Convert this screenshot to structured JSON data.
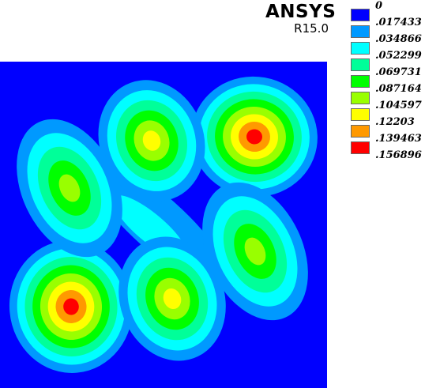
{
  "header": {
    "product": "ANSYS",
    "release": "R15.0"
  },
  "legend": {
    "entries": [
      {
        "label": "0",
        "color": "#0000ff"
      },
      {
        "label": ".017433",
        "color": "#0099ff"
      },
      {
        "label": ".034866",
        "color": "#00ffff"
      },
      {
        "label": ".052299",
        "color": "#00ff99"
      },
      {
        "label": ".069731",
        "color": "#00ff00"
      },
      {
        "label": ".087164",
        "color": "#99ff00"
      },
      {
        "label": ".104597",
        "color": "#ffff00"
      },
      {
        "label": ".12203",
        "color": "#ff9900"
      },
      {
        "label": ".139463",
        "color": "#ff0000"
      },
      {
        "label": ".156896",
        "color": ""
      }
    ]
  },
  "plot": {
    "background_color": "#0000ff",
    "lobes": [
      {
        "name": "top-right",
        "peak_level": 8
      },
      {
        "name": "bottom-left",
        "peak_level": 8
      },
      {
        "name": "top-center",
        "peak_level": 6
      },
      {
        "name": "bottom-center",
        "peak_level": 6
      },
      {
        "name": "left",
        "peak_level": 5
      },
      {
        "name": "right",
        "peak_level": 5
      }
    ]
  }
}
